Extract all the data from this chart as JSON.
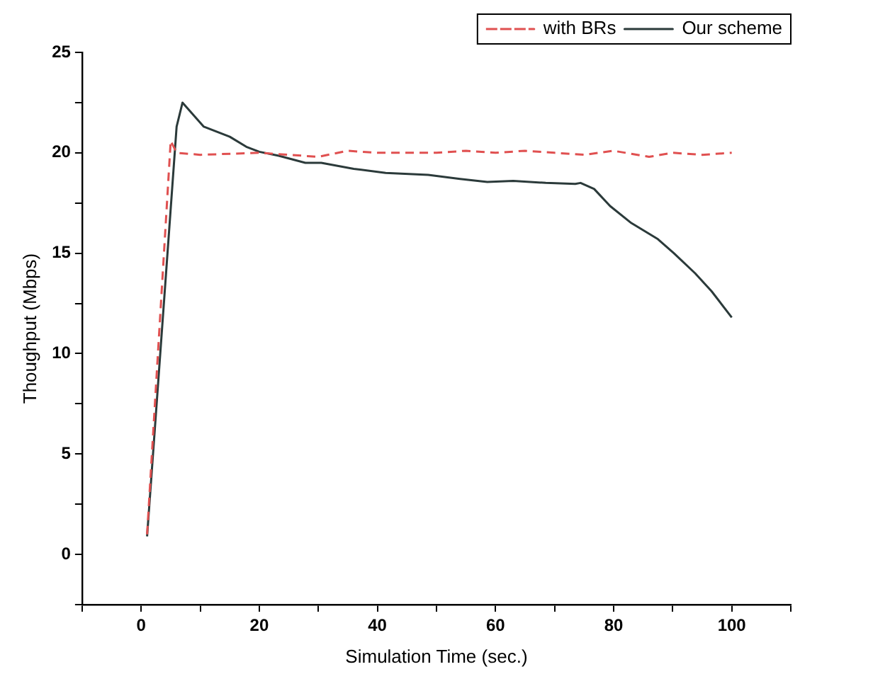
{
  "chart_data": {
    "type": "line",
    "xlabel": "Simulation Time (sec.)",
    "ylabel": "Thoughput (Mbps)",
    "xlim": [
      -10,
      110
    ],
    "xticks": [
      {
        "value": -10,
        "label": null
      },
      0,
      {
        "value": 10,
        "label": null
      },
      20,
      {
        "value": 30,
        "label": null
      },
      40,
      {
        "value": 50,
        "label": null
      },
      60,
      {
        "value": 70,
        "label": null
      },
      80,
      {
        "value": 90,
        "label": null
      },
      100,
      {
        "value": 110,
        "label": null
      }
    ],
    "ylim": [
      -2.5,
      25
    ],
    "yticks": [
      {
        "value": -2.5,
        "label": null
      },
      0,
      {
        "value": 2.5,
        "label": null
      },
      5,
      {
        "value": 7.5,
        "label": null
      },
      10,
      {
        "value": 12.5,
        "label": null
      },
      15,
      {
        "value": 17.5,
        "label": null
      },
      20,
      {
        "value": 22.5,
        "label": null
      },
      25
    ],
    "grid": false,
    "legend": "top right",
    "marker": "none",
    "series": [
      {
        "name": "Our scheme",
        "color": "#2b3a3a",
        "line_style": "solid",
        "x": [
          1,
          6,
          7,
          10.6,
          15,
          17.8,
          20,
          23.3,
          27.8,
          30.5,
          36,
          41.4,
          48.6,
          54,
          58.6,
          63,
          68.5,
          73.5,
          74.4,
          76.7,
          79.4,
          83,
          87.5,
          90.2,
          93.8,
          96.6,
          100
        ],
        "values": [
          0.9,
          21.3,
          22.5,
          21.3,
          20.8,
          20.3,
          20.05,
          19.85,
          19.5,
          19.5,
          19.2,
          19.0,
          18.9,
          18.7,
          18.55,
          18.6,
          18.5,
          18.45,
          18.5,
          18.2,
          17.35,
          16.5,
          15.7,
          15.0,
          14.0,
          13.1,
          11.8
        ]
      },
      {
        "name": "with BRs",
        "color": "#e05050",
        "line_style": "dashed",
        "x": [
          1,
          5,
          6,
          10,
          20,
          25,
          30,
          35,
          40,
          50,
          55,
          60,
          65,
          70,
          75,
          80,
          86,
          90,
          95,
          100
        ],
        "values": [
          1,
          20.6,
          20,
          19.9,
          20,
          19.9,
          19.8,
          20.1,
          20,
          20,
          20.1,
          20,
          20.1,
          20,
          19.9,
          20.1,
          19.8,
          20,
          19.9,
          20
        ]
      }
    ]
  }
}
